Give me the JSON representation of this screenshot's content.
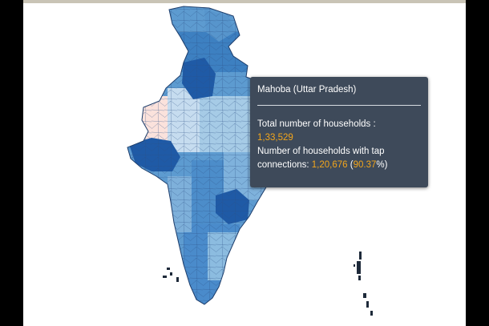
{
  "tooltip": {
    "title": "Mahoba (Uttar Pradesh)",
    "total_label": "Total number of households :",
    "total_value": "1,33,529",
    "tap_label_line1": "Number of households with tap",
    "tap_label_line2": "connections:",
    "tap_value": "1,20,676",
    "open_paren": "(",
    "tap_percent": "90.37",
    "close_paren": "%)"
  },
  "colors": {
    "tooltip_bg": "#3e4a5a",
    "value_highlight": "#f3a61b",
    "darkest_blue": "#1f5aa6",
    "light_blue": "#a6cbe6",
    "pale_pink": "#fbe2dc"
  }
}
